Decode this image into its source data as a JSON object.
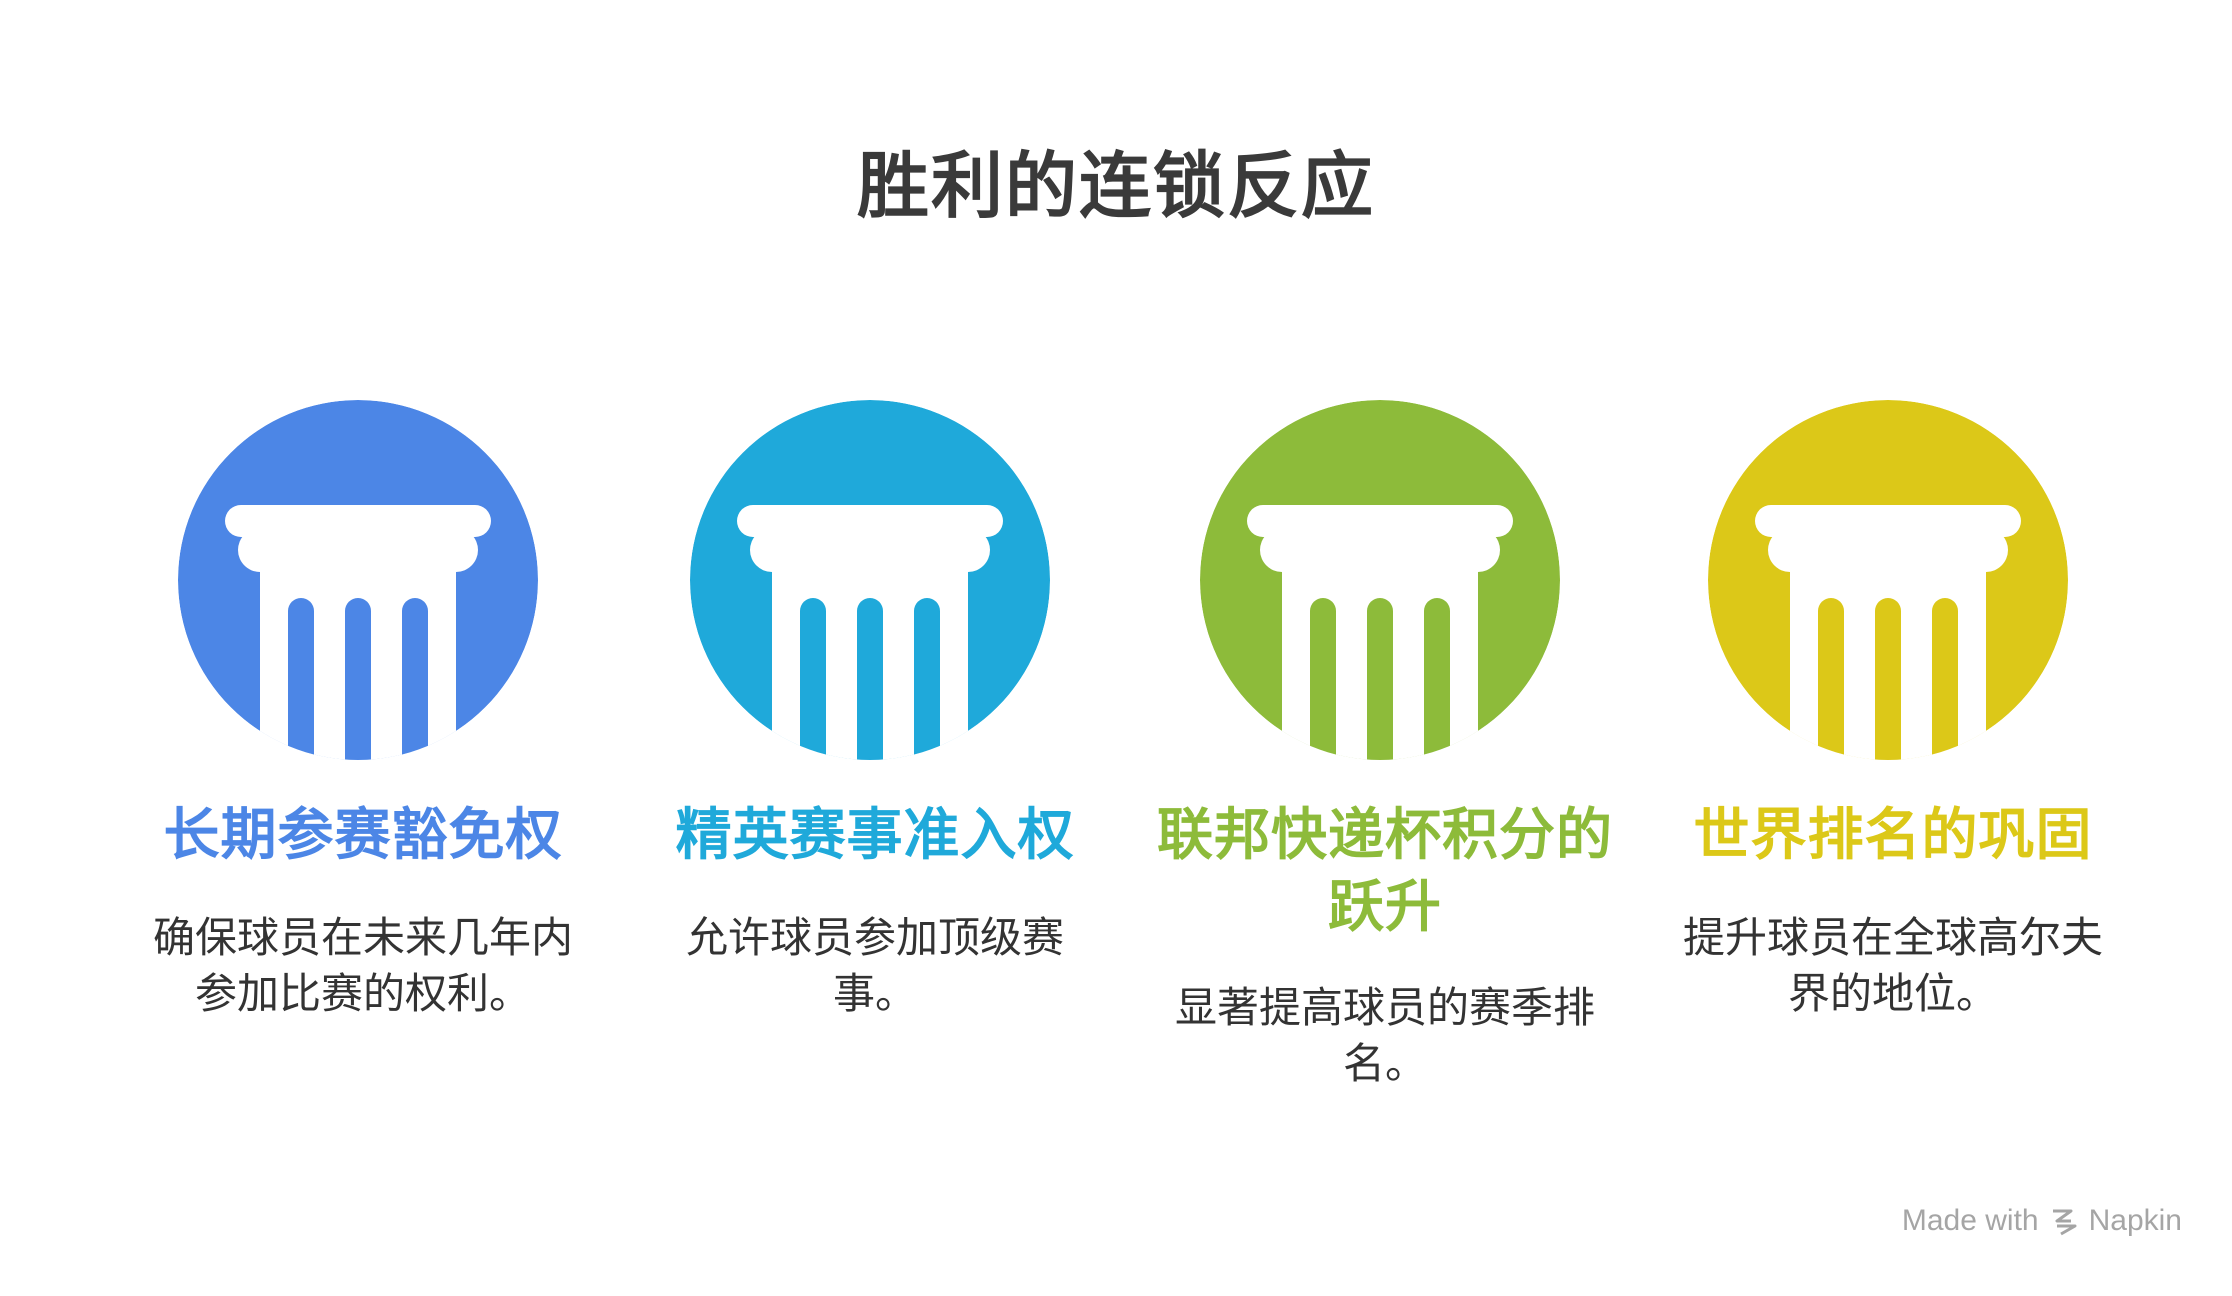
{
  "title": "胜利的连锁反应",
  "cards": [
    {
      "title": "长期参赛豁免权",
      "description": "确保球员在未来几年内参加比赛的权利。",
      "color": "#4c86e6",
      "icon": "column-icon"
    },
    {
      "title": "精英赛事准入权",
      "description": "允许球员参加顶级赛事。",
      "color": "#1fa9da",
      "icon": "column-icon"
    },
    {
      "title": "联邦快递杯积分的跃升",
      "description": "显著提高球员的赛季排名。",
      "color": "#8dbb3a",
      "icon": "column-icon"
    },
    {
      "title": "世界排名的巩固",
      "description": "提升球员在全球高尔夫界的地位。",
      "color": "#dcc818",
      "icon": "column-icon"
    }
  ],
  "footer": {
    "made_with": "Made with",
    "brand": "Napkin",
    "icon": "napkin-logo-icon"
  }
}
